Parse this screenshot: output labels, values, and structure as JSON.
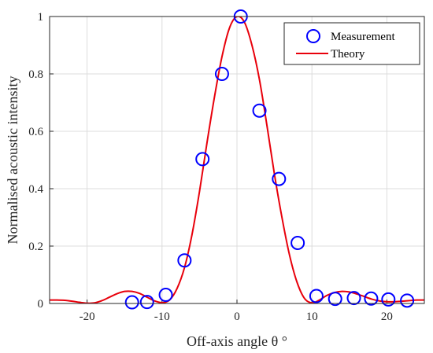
{
  "chart_data": {
    "type": "line",
    "title": "",
    "xlabel": "Off-axis angle θ °",
    "ylabel": "Normalised acoustic intensity",
    "xlim": [
      -25,
      25
    ],
    "ylim": [
      0,
      1
    ],
    "xticks": [
      -20,
      -10,
      0,
      10,
      20
    ],
    "yticks": [
      0,
      0.2,
      0.4,
      0.6,
      0.8,
      1
    ],
    "xtick_labels": [
      "-20",
      "-10",
      "0",
      "10",
      "20"
    ],
    "ytick_labels": [
      "0",
      "0.2",
      "0.4",
      "0.6",
      "0.8",
      "1"
    ],
    "grid": true,
    "legend_position": "top-right",
    "series": [
      {
        "name": "Measurement",
        "kind": "scatter",
        "marker": "open-circle",
        "color": "#0000ff",
        "x": [
          -14,
          -12,
          -9.5,
          -7,
          -4.6,
          -2,
          0.5,
          3,
          5.6,
          8.1,
          10.6,
          13.1,
          15.6,
          17.9,
          20.2,
          22.7
        ],
        "y": [
          0.004,
          0.005,
          0.03,
          0.15,
          0.503,
          0.8,
          1.0,
          0.672,
          0.434,
          0.211,
          0.026,
          0.016,
          0.019,
          0.017,
          0.014,
          0.01
        ]
      },
      {
        "name": "Theory",
        "kind": "line",
        "color": "#e8000b",
        "x": [
          -25,
          -24,
          -23,
          -22,
          -21,
          -20,
          -19,
          -18,
          -17,
          -16,
          -15,
          -14,
          -13,
          -12,
          -11,
          -10,
          -9,
          -8,
          -7,
          -6,
          -5,
          -4,
          -3,
          -2,
          -1,
          0,
          1,
          2,
          3,
          4,
          5,
          6,
          7,
          8,
          9,
          10,
          11,
          12,
          13,
          14,
          15,
          16,
          17,
          18,
          19,
          20,
          21,
          22,
          23,
          24,
          25
        ],
        "y": [
          0.012,
          0.012,
          0.011,
          0.008,
          0.004,
          0.001,
          0.002,
          0.01,
          0.022,
          0.034,
          0.042,
          0.042,
          0.035,
          0.022,
          0.009,
          0.003,
          0.012,
          0.052,
          0.125,
          0.24,
          0.39,
          0.56,
          0.72,
          0.86,
          0.96,
          1.0,
          0.98,
          0.9,
          0.78,
          0.62,
          0.45,
          0.3,
          0.17,
          0.075,
          0.018,
          0.002,
          0.012,
          0.028,
          0.038,
          0.042,
          0.04,
          0.033,
          0.024,
          0.015,
          0.009,
          0.006,
          0.006,
          0.008,
          0.01,
          0.012,
          0.012
        ]
      }
    ]
  }
}
